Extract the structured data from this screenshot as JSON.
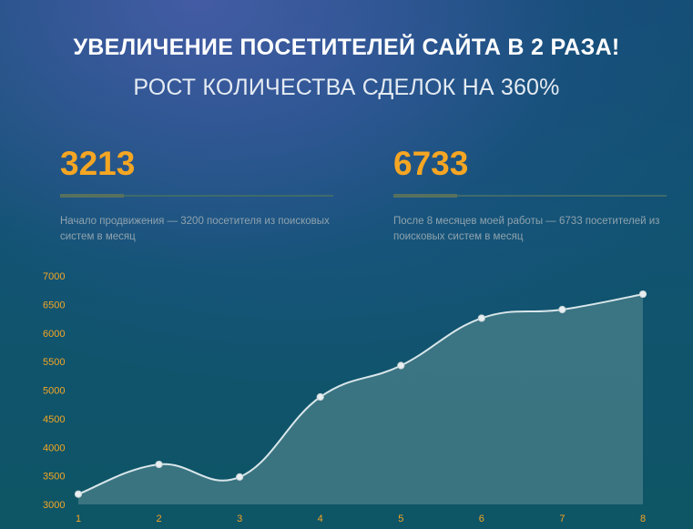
{
  "header": {
    "title": "УВЕЛИЧЕНИЕ ПОСЕТИТЕЛЕЙ САЙТА В 2 РАЗА!",
    "subtitle": "РОСТ КОЛИЧЕСТВА СДЕЛОК НА 360%"
  },
  "stats": [
    {
      "value": "3213",
      "caption": "Начало продвижения — 3200 посетителя из поисковых систем в месяц"
    },
    {
      "value": "6733",
      "caption": "После 8 месяцев моей работы — 6733 посетителей из поисковых систем в месяц"
    }
  ],
  "colors": {
    "accent": "#f5a623",
    "line": "#d8e6ea",
    "area": "#4a7f8a"
  },
  "chart_data": {
    "type": "area",
    "x": [
      1,
      2,
      3,
      4,
      5,
      6,
      7,
      8
    ],
    "values": [
      3180,
      3700,
      3480,
      4880,
      5430,
      6260,
      6410,
      6680
    ],
    "yticks": [
      3000,
      3500,
      4000,
      4500,
      5000,
      5500,
      6000,
      6500,
      7000
    ],
    "ylim": [
      3000,
      7000
    ],
    "xlim": [
      1,
      8
    ],
    "grid": false,
    "title": "",
    "xlabel": "",
    "ylabel": ""
  }
}
